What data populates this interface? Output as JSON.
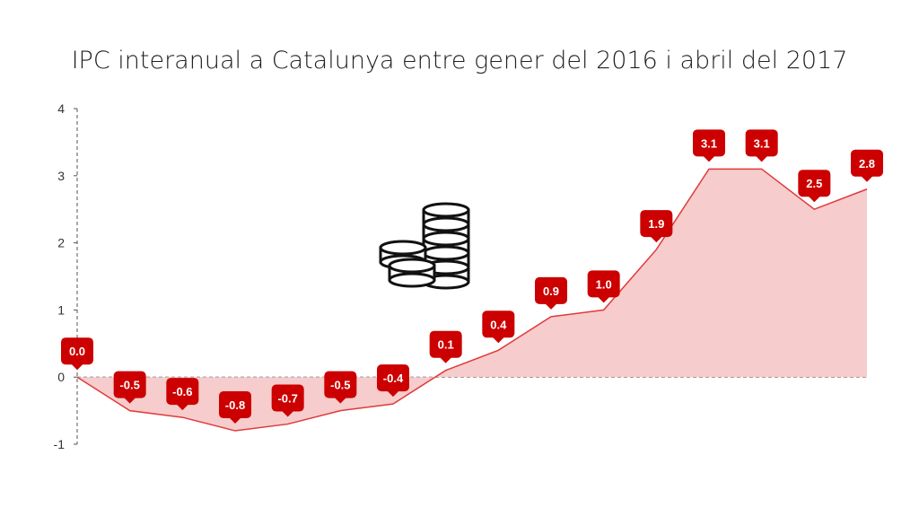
{
  "chart_data": {
    "type": "area",
    "title": "IPC interanual a Catalunya entre gener del 2016 i abril del 2017",
    "xlabel": "",
    "ylabel": "",
    "ylim": [
      -1,
      4
    ],
    "yticks": [
      4,
      3,
      2,
      1,
      0,
      -1
    ],
    "grid": false,
    "x": [
      1,
      2,
      3,
      4,
      5,
      6,
      7,
      8,
      9,
      10,
      11,
      12,
      13,
      14,
      15,
      16
    ],
    "values": [
      0.0,
      -0.5,
      -0.6,
      -0.8,
      -0.7,
      -0.5,
      -0.4,
      0.1,
      0.4,
      0.9,
      1.0,
      1.9,
      3.1,
      3.1,
      2.5,
      2.8
    ],
    "labels": [
      "0.0",
      "-0.5",
      "-0.6",
      "-0.8",
      "-0.7",
      "-0.5",
      "-0.4",
      "0.1",
      "0.4",
      "0.9",
      "1.0",
      "1.9",
      "3.1",
      "3.1",
      "2.5",
      "2.8"
    ],
    "colors": {
      "line": "#e03a3a",
      "fill": "#f6cccc",
      "label": "#cc0000"
    },
    "decoration": "coins-icon"
  }
}
